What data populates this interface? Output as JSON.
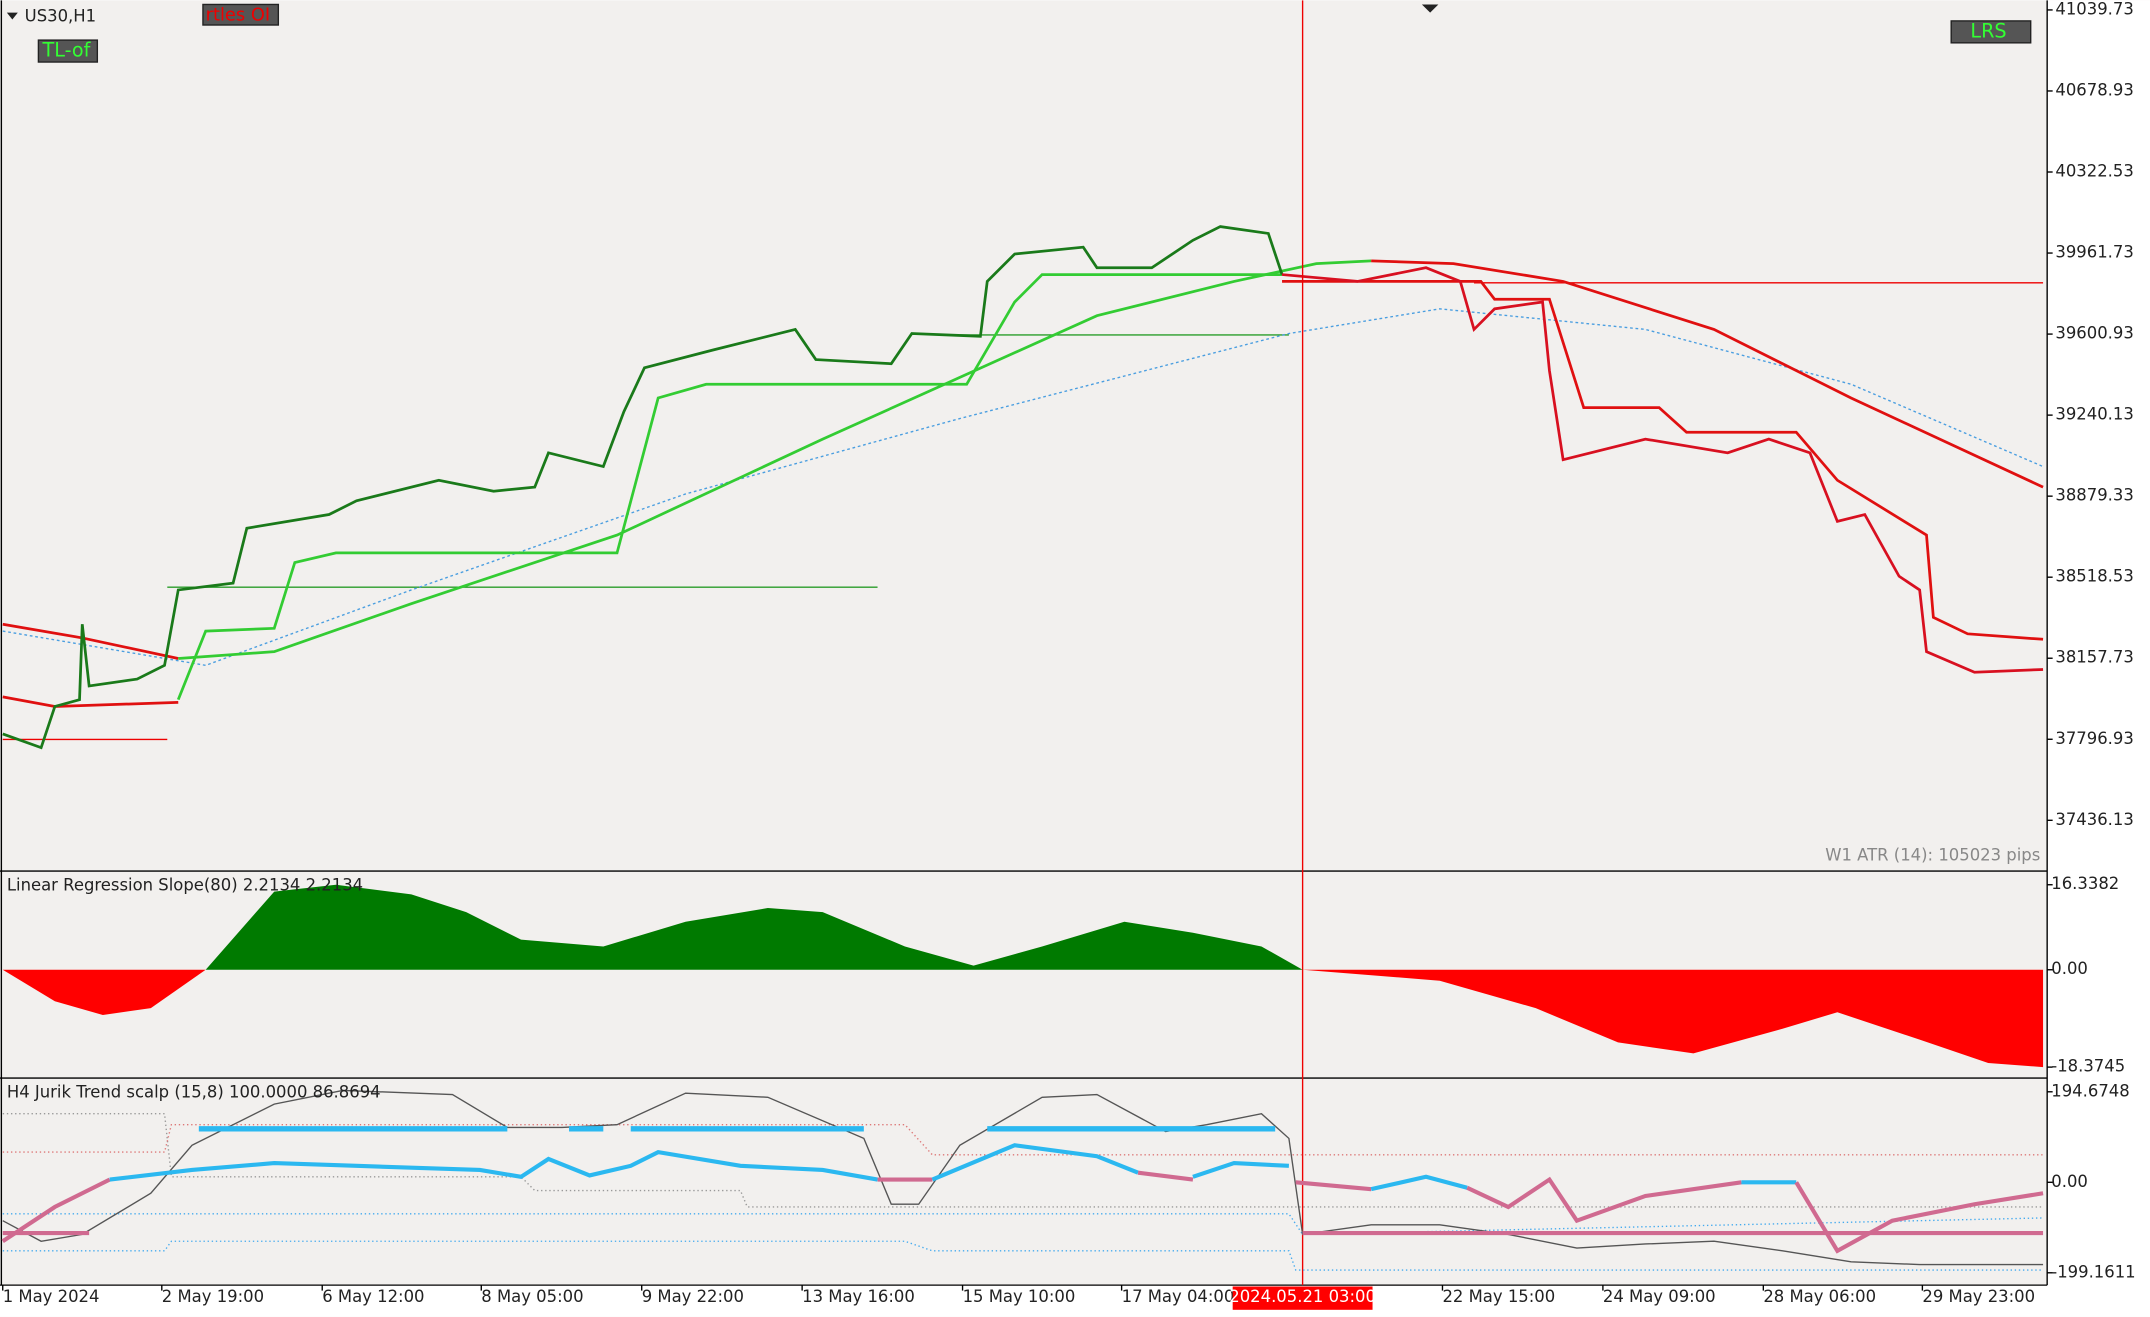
{
  "header": {
    "symbol": "US30,H1",
    "buttons": [
      "rtles OI",
      "TL-of",
      "LRS"
    ]
  },
  "main_panel": {
    "price_axis": [
      "41039.73",
      "40678.93",
      "40322.53",
      "39961.73",
      "39600.93",
      "39240.13",
      "38879.33",
      "38518.53",
      "38157.73",
      "37796.93",
      "37436.13"
    ],
    "atr_label": "W1 ATR (14): 105023 pips"
  },
  "lrs_panel": {
    "title": "Linear Regression Slope(80) 2.2134 2.2134",
    "axis": [
      "16.3382",
      "0.00",
      "-18.3745"
    ]
  },
  "jurik_panel": {
    "title": "H4 Jurik Trend scalp (15,8) 100.0000 86.8694",
    "axis": [
      "194.6748",
      "0.00",
      "-199.1611"
    ]
  },
  "time_axis": {
    "labels": [
      "1 May 2024",
      "2 May 19:00",
      "6 May 12:00",
      "8 May 05:00",
      "9 May 22:00",
      "13 May 16:00",
      "15 May 10:00",
      "17 May 04:00",
      "22 May 15:00",
      "24 May 09:00",
      "28 May 06:00",
      "29 May 23:00"
    ],
    "crosshair": "2024.05.21 03:00"
  }
}
